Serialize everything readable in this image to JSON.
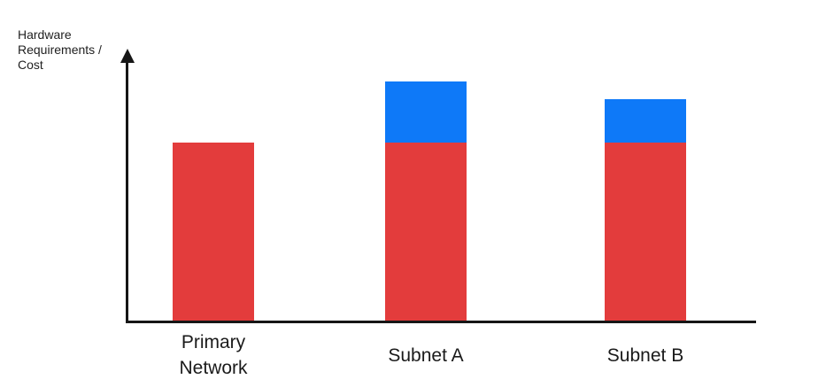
{
  "chart_data": {
    "type": "bar",
    "subtype": "stacked",
    "title": "",
    "xlabel": "",
    "ylabel": "Hardware Requirements / Cost",
    "ylabel_lines": [
      "Hardware",
      "Requirements /",
      "Cost"
    ],
    "categories": [
      "Primary Network",
      "Subnet A",
      "Subnet B"
    ],
    "series": [
      {
        "name": "red",
        "color": "#e33c3c",
        "values": [
          203,
          203,
          203
        ]
      },
      {
        "name": "blue",
        "color": "#0e79f8",
        "values": [
          0,
          69,
          49
        ]
      }
    ],
    "totals": [
      203,
      272,
      252
    ],
    "units_note": "relative units, no numeric scale or ticks shown",
    "axis_ticks": "none",
    "legend_position": "none",
    "grid": false,
    "axis_color": "#161616",
    "background_color": "#ffffff"
  }
}
